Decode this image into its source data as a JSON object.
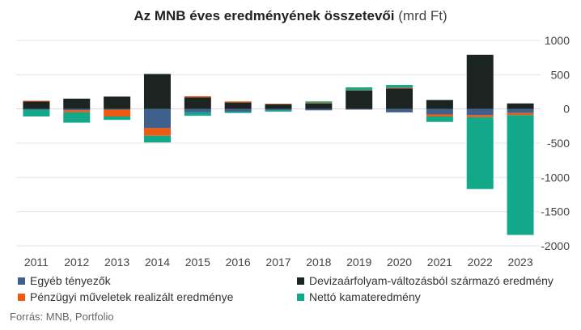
{
  "title": {
    "main": "Az MNB éves eredményének összetevői",
    "unit": "(mrd Ft)"
  },
  "source": "Forrás: MNB, Portfolio",
  "chart_data": {
    "type": "bar",
    "stacked": true,
    "categories": [
      "2011",
      "2012",
      "2013",
      "2014",
      "2015",
      "2016",
      "2017",
      "2018",
      "2019",
      "2020",
      "2021",
      "2022",
      "2023"
    ],
    "yaxis_position": "right",
    "ylim": [
      -2000,
      1000
    ],
    "yticks": [
      1000,
      500,
      0,
      -500,
      -1000,
      -1500,
      -2000
    ],
    "ytick_labels": [
      "1000",
      "500",
      "0",
      "-500",
      "-1000",
      "-1500",
      "-2000"
    ],
    "grid": true,
    "legend_position": "bottom",
    "series": [
      {
        "name": "Egyéb tényezők",
        "color": "#3f5f8c",
        "values": [
          -10,
          -20,
          -10,
          -280,
          -50,
          -40,
          -20,
          -20,
          -10,
          -50,
          -80,
          -90,
          -60
        ]
      },
      {
        "name": "Devizaárfolyam-változásból származó eredmény",
        "color": "#1c2422",
        "values": [
          110,
          150,
          180,
          510,
          170,
          95,
          70,
          80,
          270,
          300,
          130,
          790,
          80
        ]
      },
      {
        "name": "Pénzügyi műveletek realizált eredménye",
        "color": "#ee5a12",
        "values": [
          10,
          -30,
          -100,
          -110,
          15,
          15,
          5,
          10,
          5,
          10,
          -30,
          -30,
          -30
        ]
      },
      {
        "name": "Nettó kamateredmény",
        "color": "#13a88a",
        "values": [
          -100,
          -150,
          -50,
          -100,
          -50,
          -20,
          -20,
          20,
          40,
          40,
          -80,
          -1050,
          -1750
        ]
      }
    ]
  }
}
